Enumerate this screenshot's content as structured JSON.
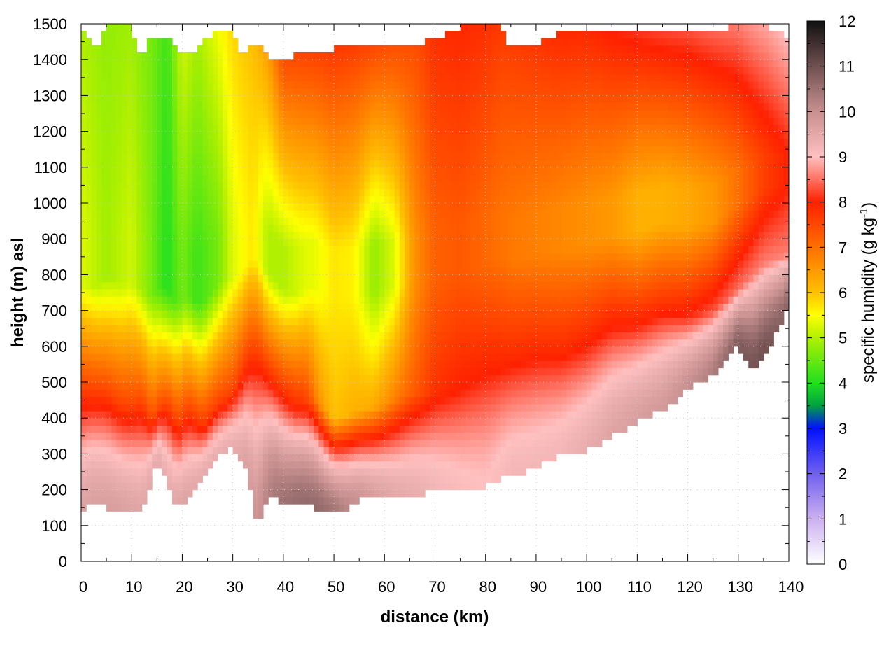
{
  "chart_data": {
    "type": "heatmap",
    "title": "",
    "xlabel": "distance (km)",
    "ylabel": "height (m) asl",
    "colorbar_label_main": "specific humidity (g kg",
    "colorbar_label_exp": "-1",
    "colorbar_label_close": ")",
    "xlim": [
      0,
      140
    ],
    "ylim": [
      0,
      1500
    ],
    "clim": [
      0,
      12
    ],
    "grid": true,
    "x_ticks": [
      0,
      10,
      20,
      30,
      40,
      50,
      60,
      70,
      80,
      90,
      100,
      110,
      120,
      130,
      140
    ],
    "y_ticks": [
      0,
      100,
      200,
      300,
      400,
      500,
      600,
      700,
      800,
      900,
      1000,
      1100,
      1200,
      1300,
      1400,
      1500
    ],
    "c_ticks": [
      0,
      1,
      2,
      3,
      4,
      5,
      6,
      7,
      8,
      9,
      10,
      11,
      12
    ],
    "colormap": [
      {
        "v": 0,
        "color": "#ffffff"
      },
      {
        "v": 1,
        "color": "#ccb0f0"
      },
      {
        "v": 2,
        "color": "#7060f0"
      },
      {
        "v": 3,
        "color": "#0010ff"
      },
      {
        "v": 3.5,
        "color": "#00a040"
      },
      {
        "v": 4,
        "color": "#20e020"
      },
      {
        "v": 5,
        "color": "#b0f000"
      },
      {
        "v": 5.5,
        "color": "#ffff00"
      },
      {
        "v": 6,
        "color": "#ffc000"
      },
      {
        "v": 7,
        "color": "#ff7000"
      },
      {
        "v": 8,
        "color": "#ff2000"
      },
      {
        "v": 9,
        "color": "#ffc0c0"
      },
      {
        "v": 10,
        "color": "#c89090"
      },
      {
        "v": 11,
        "color": "#705050"
      },
      {
        "v": 12,
        "color": "#101010"
      }
    ],
    "bottom_data_boundary": {
      "x": [
        0,
        2,
        5,
        10,
        12,
        15,
        19,
        21,
        27,
        30,
        33,
        34,
        35,
        36,
        38,
        40,
        43,
        46,
        49,
        52,
        55,
        60,
        65,
        70,
        75,
        80,
        85,
        90,
        95,
        100,
        105,
        110,
        115,
        120,
        125,
        130,
        133,
        135,
        138,
        140
      ],
      "y": [
        140,
        170,
        150,
        140,
        130,
        280,
        150,
        170,
        290,
        320,
        250,
        150,
        100,
        160,
        200,
        150,
        160,
        150,
        140,
        140,
        170,
        180,
        180,
        200,
        190,
        210,
        240,
        260,
        300,
        310,
        350,
        390,
        420,
        480,
        520,
        600,
        540,
        570,
        650,
        720
      ]
    },
    "top_data_boundary": {
      "x": [
        0,
        3,
        5,
        10,
        12,
        14,
        17,
        19,
        22,
        25,
        28,
        30,
        32,
        35,
        37,
        40,
        44,
        47,
        50,
        55,
        60,
        65,
        70,
        75,
        80,
        83,
        85,
        90,
        95,
        100,
        105,
        110,
        115,
        120,
        125,
        130,
        133,
        136,
        140
      ],
      "y": [
        1490,
        1430,
        1490,
        1490,
        1400,
        1470,
        1460,
        1430,
        1420,
        1460,
        1490,
        1470,
        1410,
        1450,
        1410,
        1390,
        1430,
        1420,
        1430,
        1430,
        1440,
        1430,
        1460,
        1490,
        1490,
        1500,
        1430,
        1440,
        1480,
        1490,
        1470,
        1470,
        1470,
        1480,
        1470,
        1500,
        1490,
        1490,
        1460
      ]
    },
    "pbl_top": {
      "x": [
        0,
        2,
        5,
        8,
        10,
        12,
        14,
        16,
        18,
        19,
        21,
        24,
        27,
        30,
        33,
        35,
        38,
        40,
        43,
        46,
        50,
        55,
        60,
        65,
        70,
        75,
        80,
        85,
        90,
        95,
        100,
        105,
        110,
        115,
        120,
        125,
        130,
        135,
        140
      ],
      "y": [
        430,
        450,
        470,
        440,
        440,
        460,
        400,
        440,
        420,
        380,
        420,
        380,
        440,
        470,
        560,
        560,
        500,
        460,
        430,
        460,
        400,
        420,
        440,
        470,
        470,
        480,
        520,
        560,
        580,
        580,
        600,
        640,
        660,
        700,
        680,
        700,
        760,
        830,
        860
      ]
    },
    "profiles": [
      {
        "x": 0,
        "surface": 9.6,
        "pbl": 8.0,
        "free": 5.3,
        "top": 5.0
      },
      {
        "x": 5,
        "surface": 9.7,
        "pbl": 7.6,
        "free": 4.9,
        "top": 4.8
      },
      {
        "x": 10,
        "surface": 9.6,
        "pbl": 7.5,
        "free": 5.2,
        "top": 4.9
      },
      {
        "x": 14,
        "surface": 9.5,
        "pbl": 7.4,
        "free": 4.6,
        "top": 4.6
      },
      {
        "x": 17,
        "surface": 9.4,
        "pbl": 7.6,
        "free": 4.0,
        "top": 4.2
      },
      {
        "x": 20,
        "surface": 9.6,
        "pbl": 7.6,
        "free": 4.6,
        "top": 5.2
      },
      {
        "x": 23,
        "surface": 9.5,
        "pbl": 7.7,
        "free": 4.2,
        "top": 4.9
      },
      {
        "x": 27,
        "surface": 9.4,
        "pbl": 7.6,
        "free": 4.6,
        "top": 5.4
      },
      {
        "x": 30,
        "surface": 9.4,
        "pbl": 7.6,
        "free": 5.3,
        "top": 5.8
      },
      {
        "x": 34,
        "surface": 9.8,
        "pbl": 7.8,
        "free": 5.7,
        "top": 6.0
      },
      {
        "x": 37,
        "surface": 10.2,
        "pbl": 7.8,
        "free": 5.0,
        "top": 6.4
      },
      {
        "x": 40,
        "surface": 10.5,
        "pbl": 7.9,
        "free": 5.0,
        "top": 7.4
      },
      {
        "x": 44,
        "surface": 10.6,
        "pbl": 7.8,
        "free": 5.3,
        "top": 7.6
      },
      {
        "x": 47,
        "surface": 10.6,
        "pbl": 6.6,
        "free": 5.4,
        "top": 7.6
      },
      {
        "x": 50,
        "surface": 10.4,
        "pbl": 6.0,
        "free": 5.7,
        "top": 7.7
      },
      {
        "x": 54,
        "surface": 10.0,
        "pbl": 6.2,
        "free": 5.6,
        "top": 7.6
      },
      {
        "x": 58,
        "surface": 9.7,
        "pbl": 6.3,
        "free": 4.8,
        "top": 7.5
      },
      {
        "x": 62,
        "surface": 9.5,
        "pbl": 6.8,
        "free": 5.3,
        "top": 7.4
      },
      {
        "x": 66,
        "surface": 9.4,
        "pbl": 7.3,
        "free": 6.6,
        "top": 7.4
      },
      {
        "x": 70,
        "surface": 9.2,
        "pbl": 7.8,
        "free": 7.2,
        "top": 7.8
      },
      {
        "x": 75,
        "surface": 9.1,
        "pbl": 8.0,
        "free": 7.3,
        "top": 7.9
      },
      {
        "x": 80,
        "surface": 9.0,
        "pbl": 8.0,
        "free": 7.1,
        "top": 7.8
      },
      {
        "x": 85,
        "surface": 9.2,
        "pbl": 7.9,
        "free": 6.9,
        "top": 7.6
      },
      {
        "x": 90,
        "surface": 9.2,
        "pbl": 7.9,
        "free": 6.8,
        "top": 7.7
      },
      {
        "x": 95,
        "surface": 9.2,
        "pbl": 7.9,
        "free": 6.7,
        "top": 7.9
      },
      {
        "x": 100,
        "surface": 9.4,
        "pbl": 8.0,
        "free": 6.6,
        "top": 7.9
      },
      {
        "x": 105,
        "surface": 9.6,
        "pbl": 8.1,
        "free": 6.5,
        "top": 8.0
      },
      {
        "x": 110,
        "surface": 9.7,
        "pbl": 8.0,
        "free": 6.2,
        "top": 8.1
      },
      {
        "x": 115,
        "surface": 9.8,
        "pbl": 7.9,
        "free": 6.2,
        "top": 8.2
      },
      {
        "x": 120,
        "surface": 10.0,
        "pbl": 8.1,
        "free": 6.3,
        "top": 8.3
      },
      {
        "x": 125,
        "surface": 10.3,
        "pbl": 8.3,
        "free": 6.5,
        "top": 8.4
      },
      {
        "x": 130,
        "surface": 10.8,
        "pbl": 8.5,
        "free": 7.0,
        "top": 8.6
      },
      {
        "x": 135,
        "surface": 11.0,
        "pbl": 8.6,
        "free": 7.6,
        "top": 8.8
      },
      {
        "x": 140,
        "surface": 10.6,
        "pbl": 8.6,
        "free": 8.0,
        "top": 9.0
      }
    ]
  }
}
